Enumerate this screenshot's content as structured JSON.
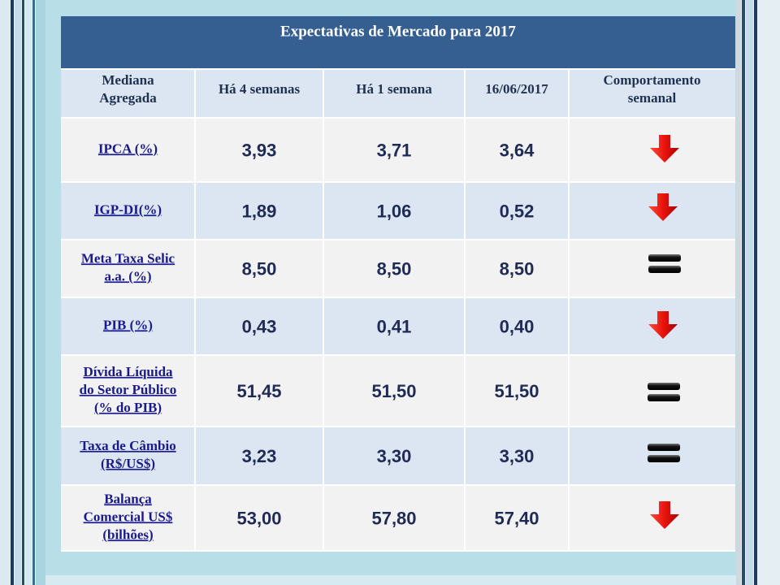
{
  "title": "Expectativas de Mercado para 2017",
  "table": {
    "headers": [
      [
        "Mediana",
        "Agregada"
      ],
      [
        "Há 4 semanas"
      ],
      [
        "Há 1 semana"
      ],
      [
        "16/06/2017"
      ],
      [
        "Comportamento",
        "semanal"
      ]
    ],
    "rows": [
      {
        "label": [
          "IPCA (%)"
        ],
        "values": [
          "3,93",
          "3,71",
          "3,64"
        ]
      },
      {
        "label": [
          "IGP-DI(%)"
        ],
        "values": [
          "1,89",
          "1,06",
          "0,52"
        ]
      },
      {
        "label": [
          "Meta Taxa Selic",
          "a.a. (%)"
        ],
        "values": [
          "8,50",
          "8,50",
          "8,50"
        ]
      },
      {
        "label": [
          "PIB (%)"
        ],
        "values": [
          "0,43",
          "0,41",
          "0,40"
        ]
      },
      {
        "label": [
          "Dívida Líquida",
          "do Setor Público",
          "(% do PIB)"
        ],
        "values": [
          "51,45",
          "51,50",
          "51,50"
        ]
      },
      {
        "label": [
          "Taxa de Câmbio",
          "(R$/US$)"
        ],
        "values": [
          "3,23",
          "3,30",
          "3,30"
        ]
      },
      {
        "label": [
          "Balança",
          "Comercial US$",
          "(bilhões)"
        ],
        "values": [
          "53,00",
          "57,80",
          "57,40"
        ]
      }
    ]
  }
}
